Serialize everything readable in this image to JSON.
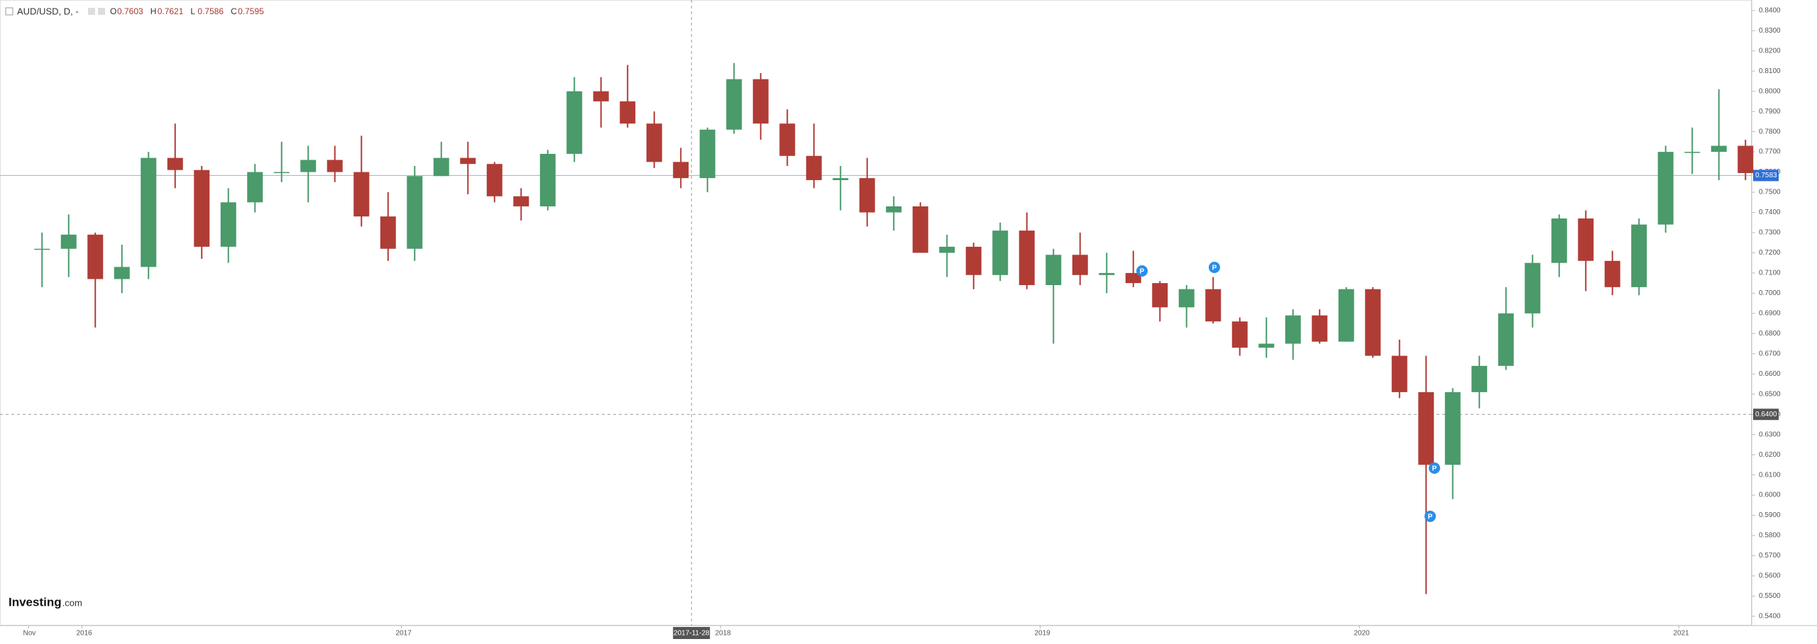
{
  "chart_data": {
    "type": "candlestick",
    "symbol": "AUD/USD, D, -",
    "ohlc_legend": [
      {
        "label": "O",
        "value": 0.7603
      },
      {
        "label": "H",
        "value": 0.7621
      },
      {
        "label": "L",
        "value": 0.7586
      },
      {
        "label": "C",
        "value": 0.7595
      }
    ],
    "categories": [
      "Nov",
      null,
      "2016",
      null,
      null,
      null,
      null,
      null,
      null,
      null,
      null,
      null,
      null,
      null,
      "2017",
      null,
      null,
      null,
      null,
      null,
      null,
      null,
      null,
      null,
      null,
      null,
      "2018",
      null,
      null,
      null,
      null,
      null,
      null,
      null,
      null,
      null,
      null,
      null,
      "2019",
      null,
      null,
      null,
      null,
      null,
      null,
      null,
      null,
      null,
      null,
      null,
      "2020",
      null,
      null,
      null,
      null,
      null,
      null,
      null,
      null,
      null,
      null,
      null,
      "2021",
      null,
      null
    ],
    "open": [
      0.722,
      0.722,
      0.729,
      0.707,
      0.713,
      0.767,
      0.761,
      0.723,
      0.745,
      0.76,
      0.76,
      0.766,
      0.76,
      0.738,
      0.722,
      0.758,
      0.767,
      0.764,
      0.748,
      0.743,
      0.769,
      0.8,
      0.795,
      0.784,
      0.765,
      0.757,
      0.781,
      0.806,
      0.784,
      0.768,
      0.756,
      0.757,
      0.74,
      0.743,
      0.72,
      0.723,
      0.709,
      0.731,
      0.704,
      0.719,
      0.709,
      0.71,
      0.705,
      0.693,
      0.702,
      0.686,
      0.673,
      0.675,
      0.689,
      0.676,
      0.702,
      0.669,
      0.651,
      0.615,
      0.651,
      0.664,
      0.69,
      0.715,
      0.737,
      0.716,
      0.703,
      0.734,
      0.77,
      0.77,
      0.773
    ],
    "high": [
      0.73,
      0.739,
      0.73,
      0.724,
      0.77,
      0.784,
      0.763,
      0.752,
      0.764,
      0.775,
      0.773,
      0.773,
      0.778,
      0.75,
      0.763,
      0.775,
      0.775,
      0.765,
      0.752,
      0.771,
      0.807,
      0.807,
      0.813,
      0.79,
      0.772,
      0.782,
      0.814,
      0.809,
      0.791,
      0.784,
      0.763,
      0.767,
      0.748,
      0.745,
      0.729,
      0.725,
      0.735,
      0.74,
      0.722,
      0.73,
      0.72,
      0.721,
      0.706,
      0.704,
      0.708,
      0.688,
      0.688,
      0.692,
      0.692,
      0.703,
      0.703,
      0.677,
      0.669,
      0.653,
      0.669,
      0.703,
      0.719,
      0.739,
      0.741,
      0.721,
      0.737,
      0.773,
      0.782,
      0.801,
      0.776
    ],
    "low": [
      0.703,
      0.708,
      0.683,
      0.7,
      0.707,
      0.752,
      0.717,
      0.715,
      0.74,
      0.755,
      0.745,
      0.755,
      0.733,
      0.716,
      0.716,
      0.758,
      0.749,
      0.745,
      0.736,
      0.741,
      0.765,
      0.782,
      0.782,
      0.762,
      0.752,
      0.75,
      0.779,
      0.776,
      0.763,
      0.752,
      0.741,
      0.733,
      0.731,
      0.72,
      0.708,
      0.702,
      0.706,
      0.702,
      0.675,
      0.704,
      0.7,
      0.703,
      0.686,
      0.683,
      0.685,
      0.669,
      0.668,
      0.667,
      0.675,
      0.676,
      0.668,
      0.648,
      0.551,
      0.598,
      0.643,
      0.662,
      0.683,
      0.708,
      0.701,
      0.699,
      0.699,
      0.73,
      0.759,
      0.756,
      0.756
    ],
    "close": [
      0.722,
      0.729,
      0.707,
      0.713,
      0.767,
      0.761,
      0.723,
      0.745,
      0.76,
      0.76,
      0.766,
      0.76,
      0.738,
      0.722,
      0.758,
      0.767,
      0.764,
      0.748,
      0.743,
      0.769,
      0.8,
      0.795,
      0.784,
      0.765,
      0.757,
      0.781,
      0.806,
      0.784,
      0.768,
      0.756,
      0.757,
      0.74,
      0.743,
      0.72,
      0.723,
      0.709,
      0.731,
      0.704,
      0.719,
      0.709,
      0.71,
      0.705,
      0.693,
      0.702,
      0.686,
      0.673,
      0.675,
      0.689,
      0.676,
      0.702,
      0.669,
      0.651,
      0.615,
      0.651,
      0.664,
      0.69,
      0.715,
      0.737,
      0.716,
      0.703,
      0.734,
      0.77,
      0.77,
      0.773,
      0.7595
    ],
    "up_color": "#4a9a6a",
    "down_color": "#b03c36",
    "ylim": [
      0.5354,
      0.8452
    ],
    "yticks": [
      {
        "value": 0.54,
        "label": "0.5400"
      },
      {
        "value": 0.55,
        "label": "0.5500"
      },
      {
        "value": 0.56,
        "label": "0.5600"
      },
      {
        "value": 0.57,
        "label": "0.5700"
      },
      {
        "value": 0.58,
        "label": "0.5800"
      },
      {
        "value": 0.59,
        "label": "0.5900"
      },
      {
        "value": 0.6,
        "label": "0.6000"
      },
      {
        "value": 0.61,
        "label": "0.6100"
      },
      {
        "value": 0.62,
        "label": "0.6200"
      },
      {
        "value": 0.63,
        "label": "0.6300"
      },
      {
        "value": 0.64,
        "label": "0.6400"
      },
      {
        "value": 0.65,
        "label": "0.6500"
      },
      {
        "value": 0.66,
        "label": "0.6600"
      },
      {
        "value": 0.67,
        "label": "0.6700"
      },
      {
        "value": 0.68,
        "label": "0.6800"
      },
      {
        "value": 0.69,
        "label": "0.6900"
      },
      {
        "value": 0.7,
        "label": "0.7000"
      },
      {
        "value": 0.71,
        "label": "0.7100"
      },
      {
        "value": 0.72,
        "label": "0.7200"
      },
      {
        "value": 0.73,
        "label": "0.7300"
      },
      {
        "value": 0.74,
        "label": "0.7400"
      },
      {
        "value": 0.75,
        "label": "0.7500"
      },
      {
        "value": 0.76,
        "label": "0.7600"
      },
      {
        "value": 0.77,
        "label": "0.7700"
      },
      {
        "value": 0.78,
        "label": "0.7800"
      },
      {
        "value": 0.79,
        "label": "0.7900"
      },
      {
        "value": 0.8,
        "label": "0.8000"
      },
      {
        "value": 0.81,
        "label": "0.8100"
      },
      {
        "value": 0.82,
        "label": "0.8200"
      },
      {
        "value": 0.83,
        "label": "0.8300"
      },
      {
        "value": 0.84,
        "label": "0.8400"
      }
    ],
    "last_price": 0.7583,
    "crosshair": {
      "x_label": "2017-11-28",
      "y": {
        "value": 0.64,
        "label": "0.6400"
      }
    },
    "events": [
      "P",
      "P",
      "P",
      "P"
    ],
    "brand": "Investing",
    "brand_suffix": ".com"
  }
}
